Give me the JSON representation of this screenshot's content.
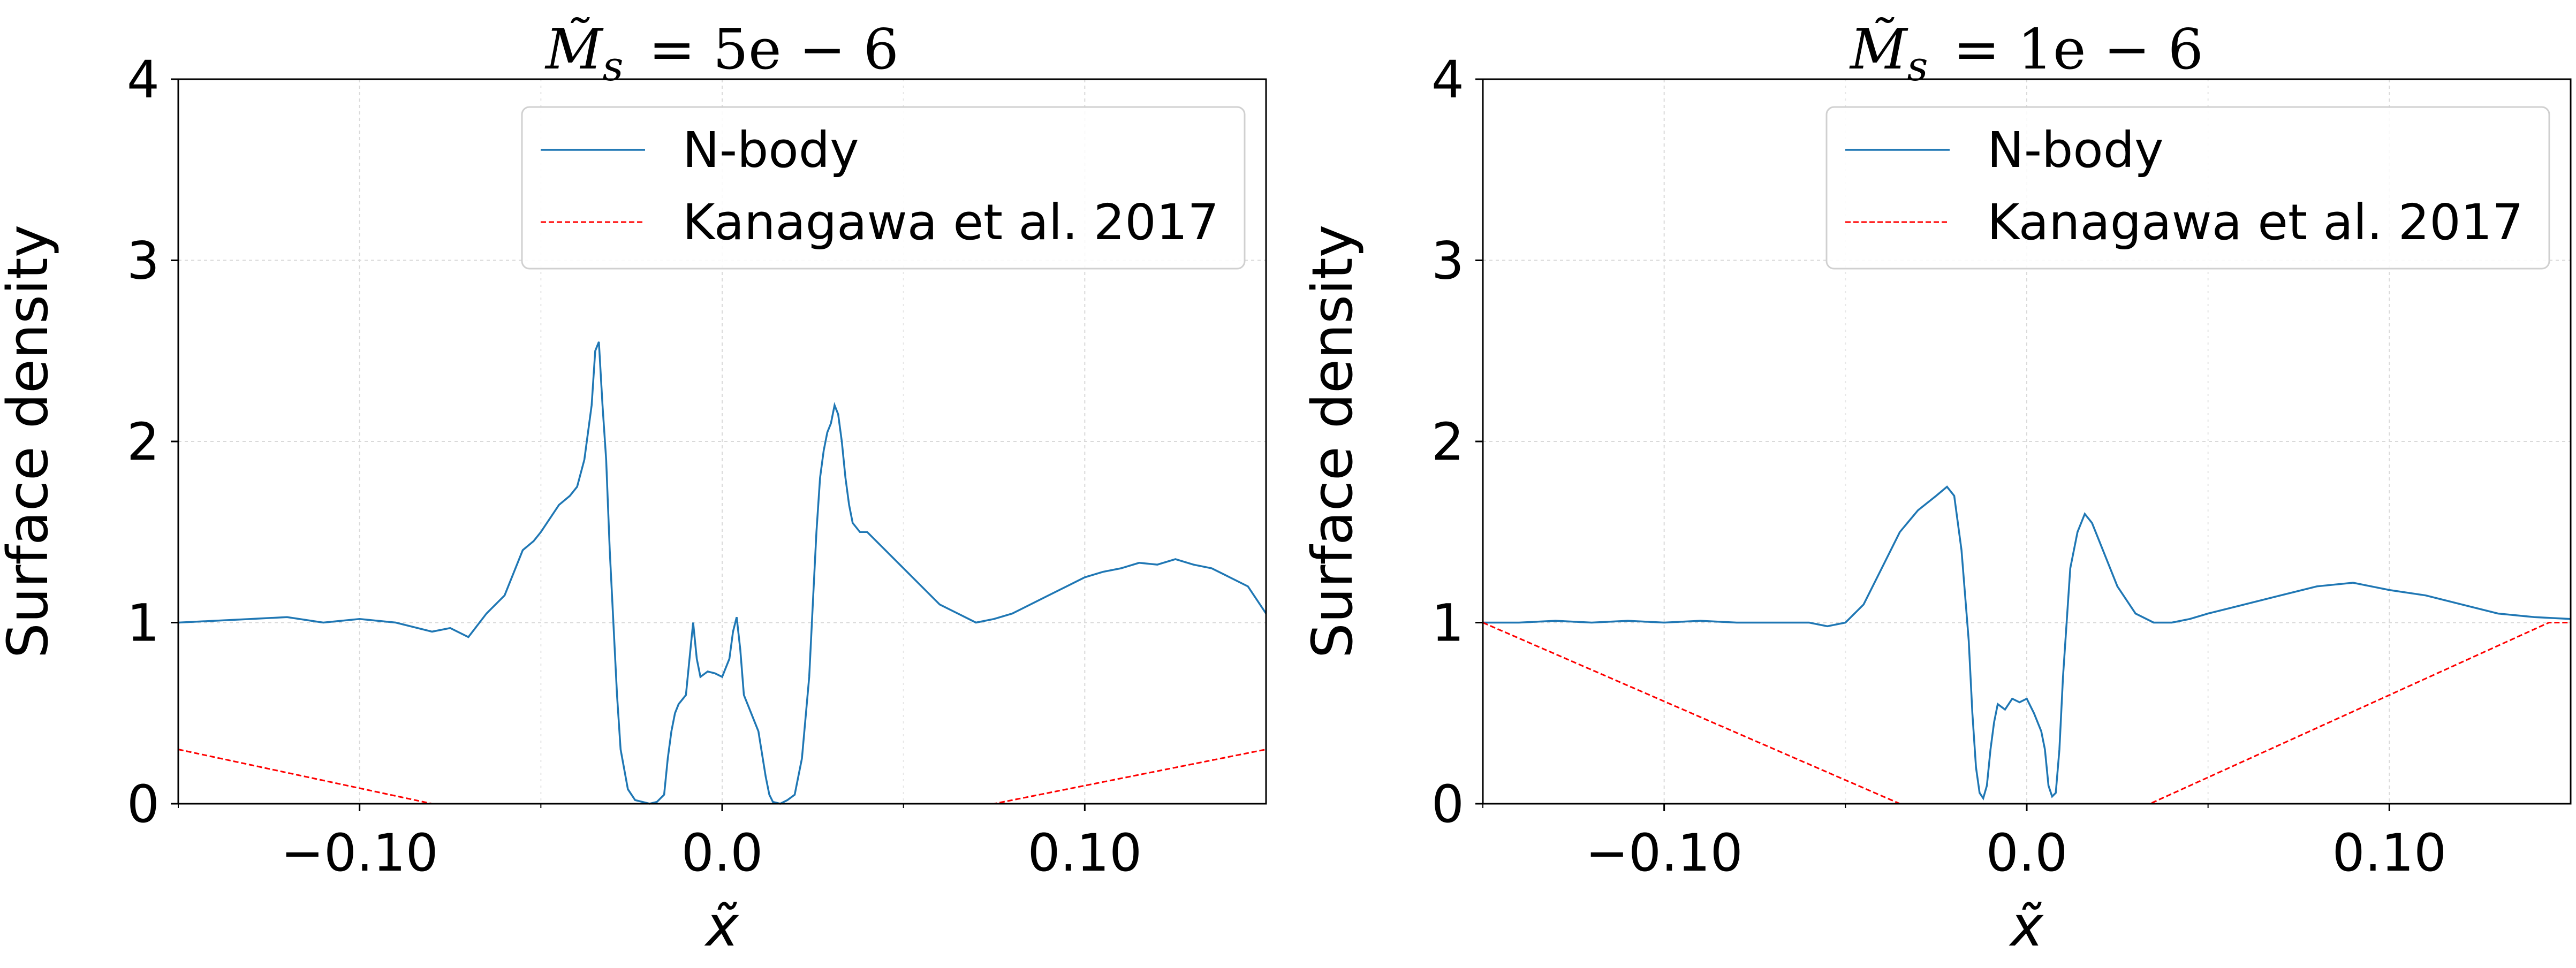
{
  "chart_data": [
    {
      "type": "line",
      "title": "M̃s = 5e − 6",
      "title_parts": {
        "symbol": "M",
        "subscript": "s",
        "value": "= 5e − 6"
      },
      "xlabel": "x̃",
      "ylabel": "Surface density",
      "xlim": [
        -0.15,
        0.15
      ],
      "ylim": [
        0,
        4
      ],
      "xticks": [
        -0.1,
        0.0,
        0.1
      ],
      "xtick_labels": [
        "−0.10",
        "0.0",
        "0.10"
      ],
      "yticks": [
        0,
        1,
        2,
        3,
        4
      ],
      "ytick_labels": [
        "0",
        "1",
        "2",
        "3",
        "4"
      ],
      "grid": true,
      "legend_position": "top-right",
      "series": [
        {
          "name": "N-body",
          "color": "#1f77b4",
          "style": "solid",
          "x": [
            -0.15,
            -0.14,
            -0.13,
            -0.12,
            -0.11,
            -0.1,
            -0.09,
            -0.08,
            -0.075,
            -0.07,
            -0.065,
            -0.06,
            -0.055,
            -0.052,
            -0.05,
            -0.045,
            -0.042,
            -0.04,
            -0.038,
            -0.036,
            -0.035,
            -0.034,
            -0.033,
            -0.032,
            -0.031,
            -0.03,
            -0.029,
            -0.028,
            -0.026,
            -0.024,
            -0.022,
            -0.02,
            -0.018,
            -0.016,
            -0.015,
            -0.014,
            -0.013,
            -0.012,
            -0.01,
            -0.009,
            -0.008,
            -0.007,
            -0.006,
            -0.004,
            -0.002,
            0.0,
            0.002,
            0.003,
            0.004,
            0.005,
            0.006,
            0.008,
            0.01,
            0.012,
            0.013,
            0.014,
            0.016,
            0.018,
            0.02,
            0.022,
            0.024,
            0.025,
            0.026,
            0.027,
            0.028,
            0.029,
            0.03,
            0.031,
            0.032,
            0.033,
            0.034,
            0.035,
            0.036,
            0.038,
            0.04,
            0.045,
            0.05,
            0.055,
            0.06,
            0.065,
            0.07,
            0.075,
            0.08,
            0.085,
            0.09,
            0.095,
            0.1,
            0.105,
            0.11,
            0.115,
            0.12,
            0.125,
            0.13,
            0.135,
            0.14,
            0.145,
            0.15
          ],
          "y": [
            1.0,
            1.01,
            1.02,
            1.03,
            1.0,
            1.02,
            1.0,
            0.95,
            0.97,
            0.92,
            1.05,
            1.15,
            1.4,
            1.45,
            1.5,
            1.65,
            1.7,
            1.75,
            1.9,
            2.2,
            2.5,
            2.55,
            2.2,
            1.9,
            1.4,
            1.0,
            0.6,
            0.3,
            0.08,
            0.02,
            0.01,
            0.0,
            0.01,
            0.05,
            0.25,
            0.4,
            0.5,
            0.55,
            0.6,
            0.8,
            1.0,
            0.8,
            0.7,
            0.73,
            0.72,
            0.7,
            0.8,
            0.95,
            1.03,
            0.85,
            0.6,
            0.5,
            0.4,
            0.15,
            0.05,
            0.01,
            0.0,
            0.02,
            0.05,
            0.25,
            0.7,
            1.1,
            1.5,
            1.8,
            1.95,
            2.05,
            2.1,
            2.2,
            2.15,
            2.0,
            1.8,
            1.65,
            1.55,
            1.5,
            1.5,
            1.4,
            1.3,
            1.2,
            1.1,
            1.05,
            1.0,
            1.02,
            1.05,
            1.1,
            1.15,
            1.2,
            1.25,
            1.28,
            1.3,
            1.33,
            1.32,
            1.35,
            1.32,
            1.3,
            1.25,
            1.2,
            1.05
          ]
        },
        {
          "name": "Kanagawa et al. 2017",
          "color": "#ff0000",
          "style": "dashed",
          "x": [
            -0.15,
            -0.08,
            0.075,
            0.15
          ],
          "y": [
            0.3,
            0.0,
            0.0,
            0.3
          ]
        }
      ]
    },
    {
      "type": "line",
      "title": "M̃s = 1e − 6",
      "title_parts": {
        "symbol": "M",
        "subscript": "s",
        "value": "= 1e − 6"
      },
      "xlabel": "x̃",
      "ylabel": "Surface density",
      "xlim": [
        -0.15,
        0.15
      ],
      "ylim": [
        0,
        4
      ],
      "xticks": [
        -0.1,
        0.0,
        0.1
      ],
      "xtick_labels": [
        "−0.10",
        "0.0",
        "0.10"
      ],
      "yticks": [
        0,
        1,
        2,
        3,
        4
      ],
      "ytick_labels": [
        "0",
        "1",
        "2",
        "3",
        "4"
      ],
      "grid": true,
      "legend_position": "top-right",
      "series": [
        {
          "name": "N-body",
          "color": "#1f77b4",
          "style": "solid",
          "x": [
            -0.15,
            -0.14,
            -0.13,
            -0.12,
            -0.11,
            -0.1,
            -0.09,
            -0.08,
            -0.07,
            -0.06,
            -0.055,
            -0.05,
            -0.045,
            -0.04,
            -0.035,
            -0.03,
            -0.025,
            -0.022,
            -0.02,
            -0.018,
            -0.016,
            -0.015,
            -0.014,
            -0.013,
            -0.012,
            -0.011,
            -0.01,
            -0.009,
            -0.008,
            -0.006,
            -0.004,
            -0.002,
            0.0,
            0.002,
            0.004,
            0.005,
            0.006,
            0.007,
            0.008,
            0.009,
            0.01,
            0.011,
            0.012,
            0.014,
            0.016,
            0.018,
            0.02,
            0.022,
            0.025,
            0.03,
            0.035,
            0.04,
            0.045,
            0.05,
            0.06,
            0.07,
            0.08,
            0.09,
            0.1,
            0.11,
            0.12,
            0.13,
            0.14,
            0.15
          ],
          "y": [
            1.0,
            1.0,
            1.01,
            1.0,
            1.01,
            1.0,
            1.01,
            1.0,
            1.0,
            1.0,
            0.98,
            1.0,
            1.1,
            1.3,
            1.5,
            1.62,
            1.7,
            1.75,
            1.7,
            1.4,
            0.9,
            0.5,
            0.2,
            0.06,
            0.03,
            0.1,
            0.3,
            0.45,
            0.55,
            0.52,
            0.58,
            0.56,
            0.58,
            0.5,
            0.4,
            0.3,
            0.1,
            0.04,
            0.06,
            0.3,
            0.7,
            1.0,
            1.3,
            1.5,
            1.6,
            1.55,
            1.45,
            1.35,
            1.2,
            1.05,
            1.0,
            1.0,
            1.02,
            1.05,
            1.1,
            1.15,
            1.2,
            1.22,
            1.18,
            1.15,
            1.1,
            1.05,
            1.03,
            1.02
          ]
        },
        {
          "name": "Kanagawa et al. 2017",
          "color": "#ff0000",
          "style": "dashed",
          "x": [
            -0.15,
            -0.035,
            0.034,
            0.144,
            0.15
          ],
          "y": [
            1.0,
            0.0,
            0.0,
            1.0,
            1.0
          ]
        }
      ]
    }
  ]
}
